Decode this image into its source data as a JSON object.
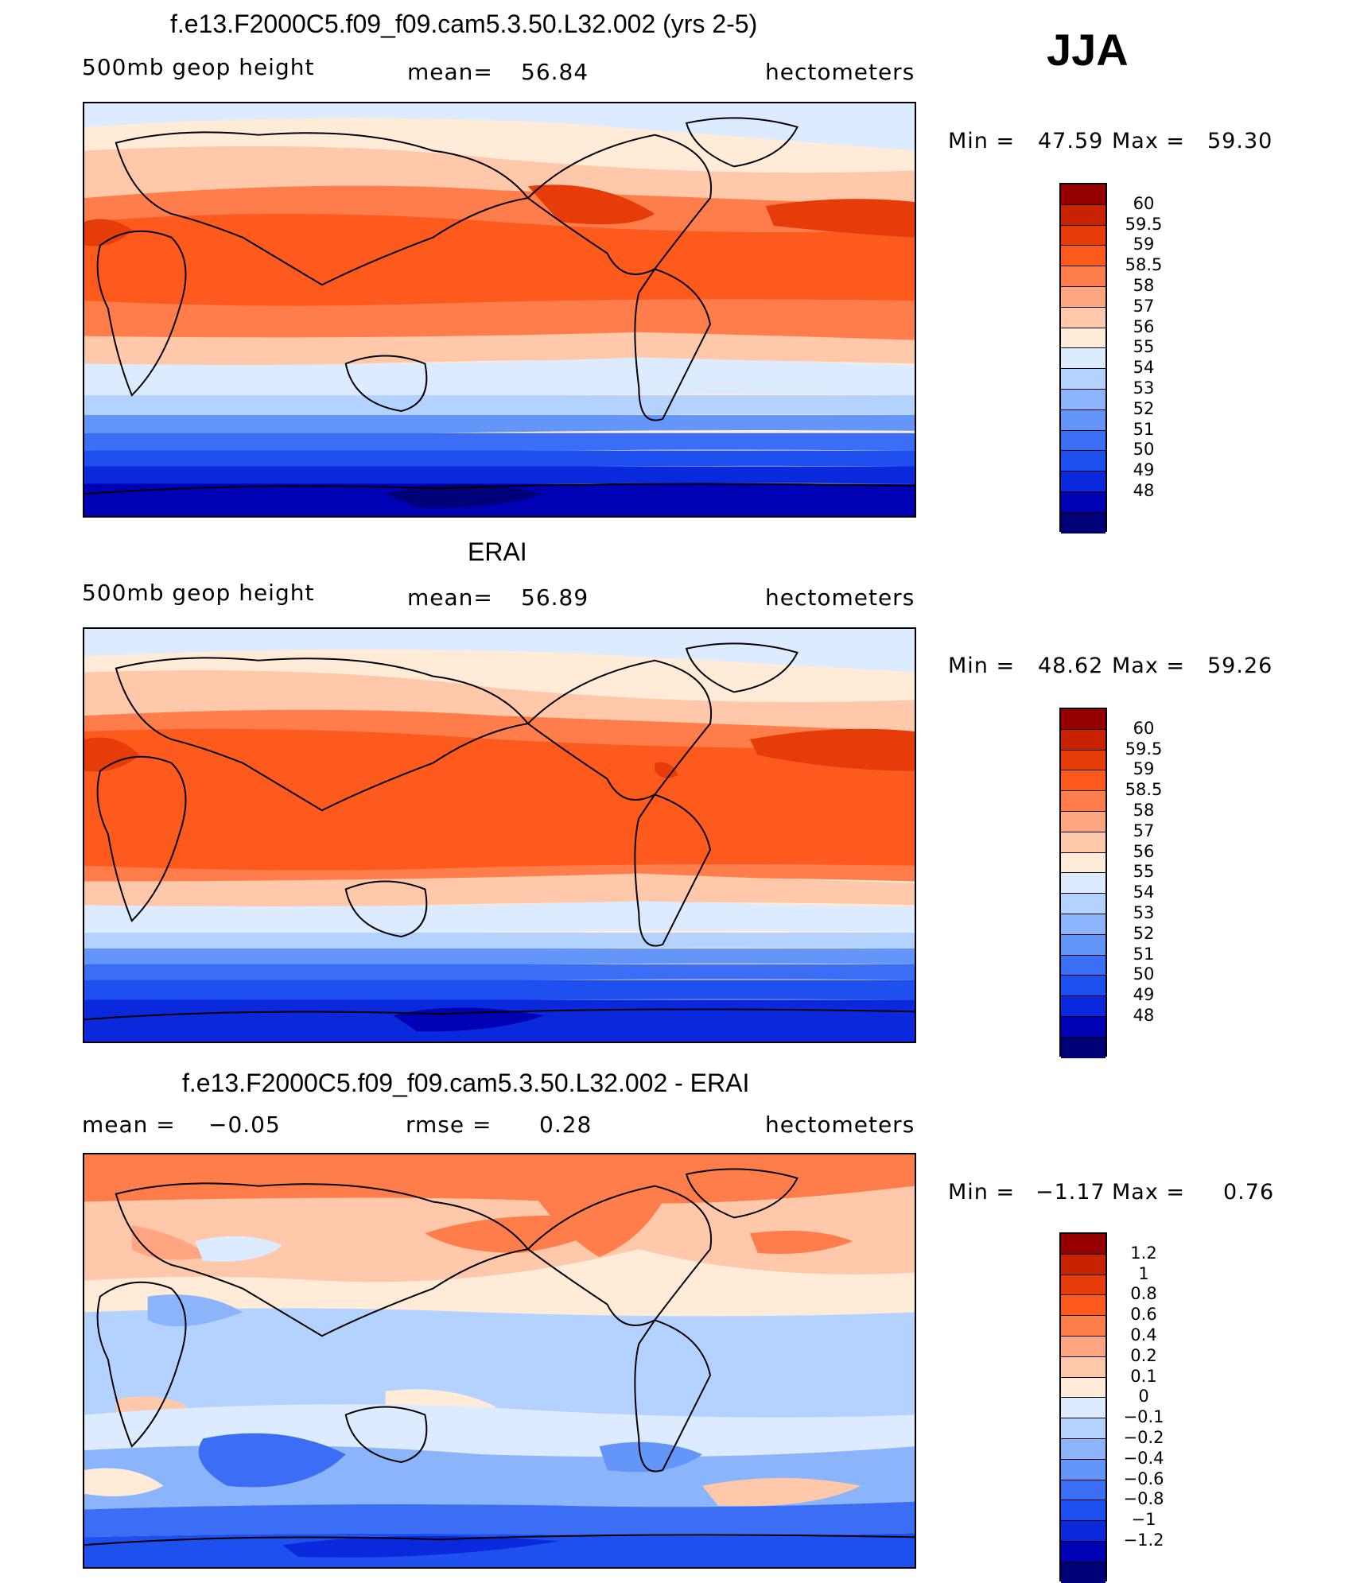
{
  "season": "JJA",
  "units": "hectometers",
  "colors": {
    "main": [
      "#000078",
      "#0000b4",
      "#0a28dc",
      "#1e50f0",
      "#3c6ef5",
      "#6496fa",
      "#8cb4fa",
      "#b4d2ff",
      "#dcebff",
      "#ffebd7",
      "#ffc8aa",
      "#ffa582",
      "#ff7d4b",
      "#ff5a1e",
      "#e63c0a",
      "#c82300",
      "#960000"
    ],
    "diff": [
      "#000078",
      "#0000b4",
      "#0a28dc",
      "#1e50f0",
      "#3c6ef5",
      "#6496fa",
      "#8cb4fa",
      "#b4d2ff",
      "#dcebff",
      "#ffebd7",
      "#ffc8aa",
      "#ffa582",
      "#ff7d4b",
      "#ff5a1e",
      "#e63c0a",
      "#c82300",
      "#960000"
    ]
  },
  "panels": [
    {
      "title": "f.e13.F2000C5.f09_f09.cam5.3.50.L32.002 (yrs 2-5)",
      "left_label": "500mb geop height",
      "center_label": "mean=",
      "center_value": "56.84",
      "right_label": "hectometers",
      "min_label": "Min =",
      "min_value": "47.59",
      "max_label": "Max =",
      "max_value": "59.30",
      "levels": [
        "60",
        "59.5",
        "59",
        "58.5",
        "58",
        "57",
        "56",
        "55",
        "54",
        "53",
        "52",
        "51",
        "50",
        "49",
        "48"
      ],
      "map_alt": "model 500mb geopotential height field on a world map"
    },
    {
      "title": "ERAI",
      "left_label": "500mb geop height",
      "center_label": "mean=",
      "center_value": "56.89",
      "right_label": "hectometers",
      "min_label": "Min =",
      "min_value": "48.62",
      "max_label": "Max =",
      "max_value": "59.26",
      "levels": [
        "60",
        "59.5",
        "59",
        "58.5",
        "58",
        "57",
        "56",
        "55",
        "54",
        "53",
        "52",
        "51",
        "50",
        "49",
        "48"
      ],
      "map_alt": "ERAI 500mb geopotential height field on a world map"
    },
    {
      "title": "f.e13.F2000C5.f09_f09.cam5.3.50.L32.002 - ERAI",
      "left_label": "mean =",
      "left_value": "−0.05",
      "center_label": "rmse =",
      "center_value": "0.28",
      "right_label": "hectometers",
      "min_label": "Min =",
      "min_value": "−1.17",
      "max_label": "Max =",
      "max_value": "0.76",
      "levels": [
        "1.2",
        "1",
        "0.8",
        "0.6",
        "0.4",
        "0.2",
        "0.1",
        "0",
        "−0.1",
        "−0.2",
        "−0.4",
        "−0.6",
        "−0.8",
        "−1",
        "−1.2"
      ],
      "map_alt": "model minus ERAI difference field on a world map"
    }
  ]
}
